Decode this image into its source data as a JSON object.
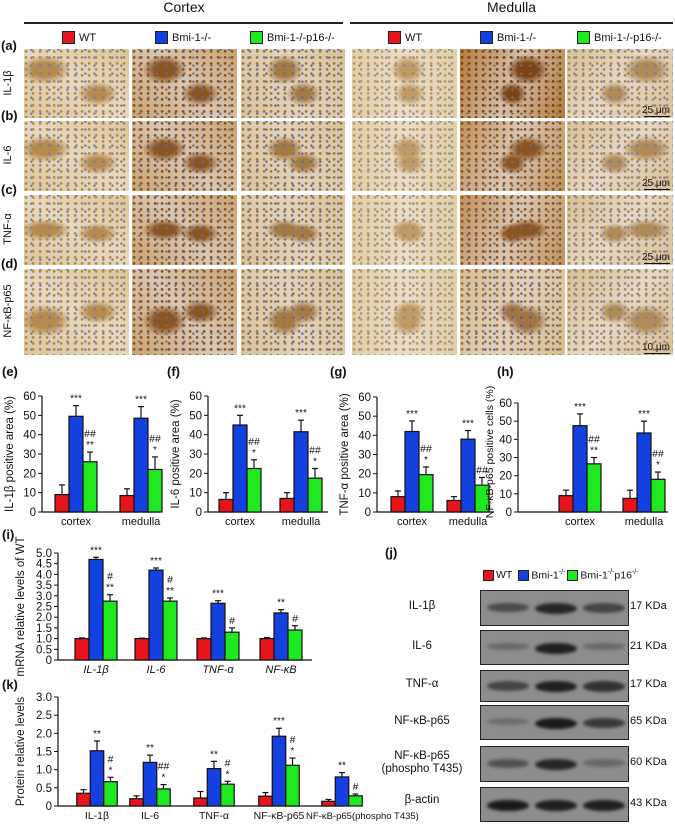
{
  "header": {
    "cortex": "Cortex",
    "medulla": "Medulla"
  },
  "groups": [
    {
      "label": "WT",
      "color": "#e8141c"
    },
    {
      "label": "Bmi-1",
      "sup": "-/-",
      "color": "#1440e0"
    },
    {
      "label": "Bmi-1",
      "sup": "-/-",
      "label2": "p16",
      "sup2": "-/-",
      "color": "#1ee81e"
    }
  ],
  "micrographs": {
    "columns": [
      "WT",
      "Bmi-1-/-",
      "Bmi-1-/-p16-/-",
      "WT",
      "Bmi-1-/-",
      "Bmi-1-/-p16-/-"
    ],
    "rows": [
      {
        "panel": "(a)",
        "label": "IL-1β",
        "scale_bar": "25 μm"
      },
      {
        "panel": "(b)",
        "label": "IL-6",
        "scale_bar": "25 μm"
      },
      {
        "panel": "(c)",
        "label": "TNF-α",
        "scale_bar": "25 μm"
      },
      {
        "panel": "(d)",
        "label": "NF-κB-p65",
        "scale_bar": "10 μm"
      }
    ]
  },
  "chart_data": [
    {
      "id": "e",
      "panel": "(e)",
      "type": "bar",
      "ylabel": "IL-1β positive area (%)",
      "ylim": [
        0,
        60
      ],
      "yticks": [
        0,
        10,
        20,
        30,
        40,
        50,
        60
      ],
      "categories": [
        "cortex",
        "medulla"
      ],
      "series": [
        {
          "name": "WT",
          "values": [
            9,
            8.5
          ],
          "errors": [
            5,
            3.5
          ]
        },
        {
          "name": "Bmi-1-/-",
          "values": [
            49.5,
            48.5
          ],
          "errors": [
            5.5,
            6
          ]
        },
        {
          "name": "Bmi-1-/-p16-/-",
          "values": [
            26,
            22
          ],
          "errors": [
            5,
            6.5
          ]
        }
      ],
      "annotations": [
        [
          [],
          [
            "***"
          ],
          [
            "##",
            "**"
          ]
        ],
        [
          [],
          [
            "***"
          ],
          [
            "##",
            "*"
          ]
        ]
      ]
    },
    {
      "id": "f",
      "panel": "(f)",
      "type": "bar",
      "ylabel": "IL-6 positive area (%)",
      "ylim": [
        0,
        60
      ],
      "yticks": [
        0,
        10,
        20,
        30,
        40,
        50,
        60
      ],
      "categories": [
        "cortex",
        "medulla"
      ],
      "series": [
        {
          "name": "WT",
          "values": [
            6.5,
            7
          ],
          "errors": [
            3.5,
            3
          ]
        },
        {
          "name": "Bmi-1-/-",
          "values": [
            45,
            41.5
          ],
          "errors": [
            5,
            6
          ]
        },
        {
          "name": "Bmi-1-/-p16-/-",
          "values": [
            22.5,
            17.5
          ],
          "errors": [
            4.5,
            5
          ]
        }
      ],
      "annotations": [
        [
          [],
          [
            "***"
          ],
          [
            "##",
            "*"
          ]
        ],
        [
          [],
          [
            "***"
          ],
          [
            "##",
            "*"
          ]
        ]
      ]
    },
    {
      "id": "g",
      "panel": "(g)",
      "type": "bar",
      "ylabel": "TNF-α positive area (%)",
      "ylim": [
        0,
        60
      ],
      "yticks": [
        0,
        10,
        20,
        30,
        40,
        50,
        60
      ],
      "categories": [
        "cortex",
        "medulla"
      ],
      "series": [
        {
          "name": "WT",
          "values": [
            8,
            6
          ],
          "errors": [
            3,
            2
          ]
        },
        {
          "name": "Bmi-1-/-",
          "values": [
            42,
            38
          ],
          "errors": [
            5.5,
            4.5
          ]
        },
        {
          "name": "Bmi-1-/-p16-/-",
          "values": [
            19.5,
            14
          ],
          "errors": [
            4,
            4
          ]
        }
      ],
      "annotations": [
        [
          [],
          [
            "***"
          ],
          [
            "##",
            "*"
          ]
        ],
        [
          [],
          [
            "***"
          ],
          [
            "##"
          ]
        ]
      ]
    },
    {
      "id": "h",
      "panel": "(h)",
      "type": "bar",
      "ylabel": "NF-κB-p65 positive cells (%)",
      "ylim": [
        0,
        60
      ],
      "yticks": [
        0,
        10,
        20,
        30,
        40,
        50,
        60
      ],
      "categories": [
        "cortex",
        "medulla"
      ],
      "series": [
        {
          "name": "WT",
          "values": [
            9,
            7.5
          ],
          "errors": [
            3,
            4.5
          ]
        },
        {
          "name": "Bmi-1-/-",
          "values": [
            47.5,
            43.5
          ],
          "errors": [
            6.5,
            6.5
          ]
        },
        {
          "name": "Bmi-1-/-p16-/-",
          "values": [
            26.5,
            18
          ],
          "errors": [
            3.5,
            4
          ]
        }
      ],
      "annotations": [
        [
          [],
          [
            "***"
          ],
          [
            "##",
            "**"
          ]
        ],
        [
          [],
          [
            "***"
          ],
          [
            "##",
            "*"
          ]
        ]
      ]
    },
    {
      "id": "i",
      "panel": "(i)",
      "type": "bar",
      "ylabel": "mRNA relative levels of WT",
      "ylim": [
        0,
        5
      ],
      "yticks": [
        0,
        0.5,
        1.0,
        1.5,
        2.0,
        2.5,
        3.0,
        3.5,
        4.0,
        4.5,
        5.0
      ],
      "italic_categories": true,
      "categories": [
        "IL-1β",
        "IL-6",
        "TNF-α",
        "NF-κB"
      ],
      "series": [
        {
          "name": "WT",
          "values": [
            1,
            1,
            1,
            1
          ],
          "errors": [
            0.03,
            0.02,
            0.03,
            0.05
          ]
        },
        {
          "name": "Bmi-1-/-",
          "values": [
            4.7,
            4.2,
            2.65,
            2.2
          ],
          "errors": [
            0.1,
            0.1,
            0.12,
            0.15
          ]
        },
        {
          "name": "Bmi-1-/-p16-/-",
          "values": [
            2.75,
            2.75,
            1.3,
            1.4
          ],
          "errors": [
            0.3,
            0.15,
            0.2,
            0.2
          ]
        }
      ],
      "annotations": [
        [
          [],
          [
            "***"
          ],
          [
            "#",
            "**"
          ]
        ],
        [
          [],
          [
            "***"
          ],
          [
            "#",
            "**"
          ]
        ],
        [
          [],
          [
            "***"
          ],
          [
            "#"
          ]
        ],
        [
          [],
          [
            "**"
          ],
          [
            "#"
          ]
        ]
      ]
    },
    {
      "id": "k",
      "panel": "(k)",
      "type": "bar",
      "ylabel": "Protein relative levels",
      "ylim": [
        0,
        3
      ],
      "yticks": [
        0,
        0.5,
        1.0,
        1.5,
        2.0,
        2.5,
        3.0
      ],
      "categories": [
        "IL-1β",
        "IL-6",
        "TNF-α",
        "NF-κB-p65",
        "NF-κB-p65(phospho T435)"
      ],
      "series": [
        {
          "name": "WT",
          "values": [
            0.35,
            0.2,
            0.22,
            0.27,
            0.13
          ],
          "errors": [
            0.1,
            0.08,
            0.18,
            0.1,
            0.05
          ]
        },
        {
          "name": "Bmi-1-/-",
          "values": [
            1.52,
            1.2,
            1.03,
            1.92,
            0.8
          ],
          "errors": [
            0.27,
            0.2,
            0.2,
            0.22,
            0.12
          ]
        },
        {
          "name": "Bmi-1-/-p16-/-",
          "values": [
            0.67,
            0.47,
            0.6,
            1.12,
            0.28
          ],
          "errors": [
            0.12,
            0.12,
            0.08,
            0.2,
            0.05
          ]
        }
      ],
      "annotations": [
        [
          [],
          [
            "**"
          ],
          [
            "#",
            "*"
          ]
        ],
        [
          [],
          [
            "**"
          ],
          [
            "##",
            "*"
          ]
        ],
        [
          [],
          [
            "**"
          ],
          [
            "#",
            "*"
          ]
        ],
        [
          [],
          [
            "***"
          ],
          [
            "#",
            "*"
          ]
        ],
        [
          [],
          [
            "**"
          ],
          [
            "#"
          ]
        ]
      ]
    }
  ],
  "western": {
    "panel": "(j)",
    "rows": [
      {
        "label": "IL-1β",
        "kda": "17 KDa"
      },
      {
        "label": "IL-6",
        "kda": "21 KDa"
      },
      {
        "label": "TNF-α",
        "kda": "17 KDa"
      },
      {
        "label": "NF-κB-p65",
        "kda": "65 KDa"
      },
      {
        "label": "NF-κB-p65",
        "label2": "(phospho T435)",
        "kda": "60 KDa"
      },
      {
        "label": "β-actin",
        "kda": "43 KDa"
      }
    ]
  }
}
